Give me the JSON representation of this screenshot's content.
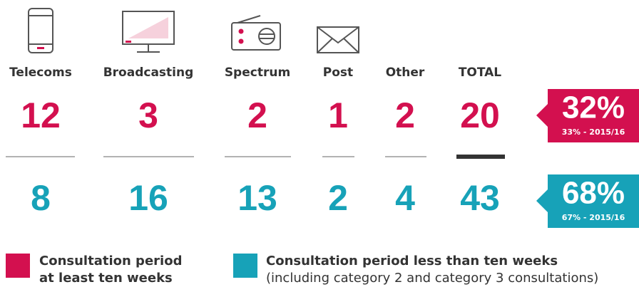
{
  "columns": [
    {
      "label": "Telecoms",
      "top": 12,
      "bottom": 8
    },
    {
      "label": "Broadcasting",
      "top": 3,
      "bottom": 16
    },
    {
      "label": "Spectrum",
      "top": 2,
      "bottom": 13
    },
    {
      "label": "Post",
      "top": 1,
      "bottom": 2
    },
    {
      "label": "Other",
      "top": 2,
      "bottom": 4
    },
    {
      "label": "TOTAL",
      "top": 20,
      "bottom": 43
    }
  ],
  "badges": [
    {
      "value": "32%",
      "note": "33% - 2015/16"
    },
    {
      "value": "68%",
      "note": "67% - 2015/16"
    }
  ],
  "legend": [
    {
      "lines": [
        "Consultation period",
        "at least ten weeks"
      ]
    },
    {
      "lines": [
        "Consultation period less than ten weeks",
        "(including category 2 and category 3 consultations)"
      ]
    }
  ]
}
